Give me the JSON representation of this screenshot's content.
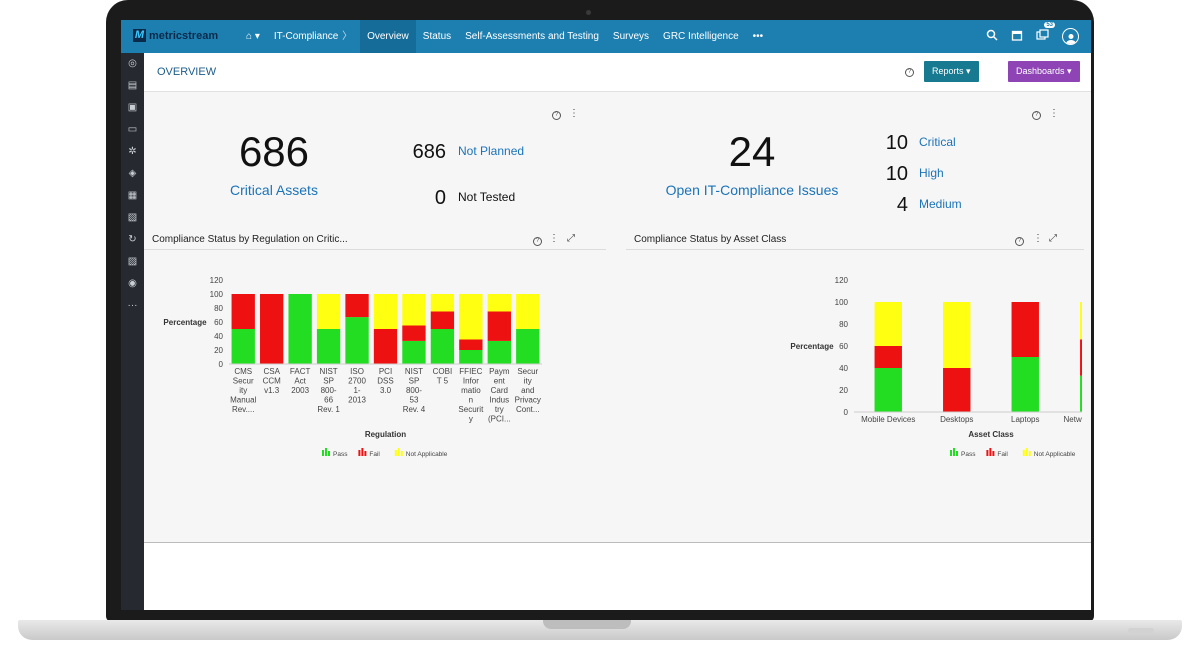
{
  "app": {
    "logo_text": "metricstream",
    "logo_mark": "M"
  },
  "nav": {
    "home": "⌂ ▾",
    "items": [
      {
        "label": "IT-Compliance",
        "sep": "〉"
      },
      {
        "label": "Overview",
        "active": true
      },
      {
        "label": "Status"
      },
      {
        "label": "Self-Assessments and Testing"
      },
      {
        "label": "Surveys"
      },
      {
        "label": "GRC Intelligence"
      },
      {
        "label": "•••"
      }
    ],
    "notification_count": "53"
  },
  "header": {
    "title": "OVERVIEW",
    "reports_label": "Reports",
    "dashboards_label": "Dashboards"
  },
  "kpi_left": {
    "value": "686",
    "label": "Critical Assets",
    "stats": [
      {
        "value": "686",
        "label": "Not Planned"
      },
      {
        "value": "0",
        "label": "Not Tested"
      }
    ]
  },
  "kpi_right": {
    "value": "24",
    "label": "Open IT-Compliance Issues",
    "stats": [
      {
        "value": "10",
        "label": "Critical"
      },
      {
        "value": "10",
        "label": "High"
      },
      {
        "value": "4",
        "label": "Medium"
      }
    ]
  },
  "colors": {
    "pass": "#22dd22",
    "fail": "#ee1111",
    "na": "#ffff11",
    "accent": "#1d7fb0"
  },
  "chart_data": [
    {
      "type": "bar",
      "stacked": true,
      "title": "Compliance Status by Regulation on Critic...",
      "xlabel": "Regulation",
      "ylabel": "Percentage",
      "ylim": [
        0,
        120
      ],
      "yticks": [
        0,
        20,
        40,
        60,
        80,
        100,
        120
      ],
      "categories": [
        [
          "CMS",
          "Secur",
          "ity",
          "Manual",
          "Rev...."
        ],
        [
          "CSA",
          "CCM",
          "v1.3"
        ],
        [
          "FACT",
          "Act",
          "2003"
        ],
        [
          "NIST",
          "SP",
          "800-",
          "66",
          "Rev. 1"
        ],
        [
          "ISO",
          "2700",
          "1-",
          "2013"
        ],
        [
          "PCI",
          "DSS",
          "3.0"
        ],
        [
          "NIST",
          "SP",
          "800-",
          "53",
          "Rev. 4"
        ],
        [
          "COBI",
          "T 5"
        ],
        [
          "FFIEC",
          "Infor",
          "matio",
          "n",
          "Securit",
          "y"
        ],
        [
          "Paym",
          "ent",
          "Card",
          "Indus",
          "try",
          "(PCI..."
        ],
        [
          "Secur",
          "ity",
          "and",
          "Privacy",
          "Cont..."
        ]
      ],
      "series": [
        {
          "name": "Pass",
          "values": [
            50,
            0,
            100,
            50,
            67,
            0,
            33,
            50,
            20,
            33,
            50
          ]
        },
        {
          "name": "Fail",
          "values": [
            50,
            100,
            0,
            0,
            33,
            50,
            22,
            25,
            15,
            42,
            0
          ]
        },
        {
          "name": "Not Applicable",
          "values": [
            0,
            0,
            0,
            50,
            0,
            50,
            45,
            25,
            65,
            25,
            50
          ]
        }
      ],
      "legend": "bottom"
    },
    {
      "type": "bar",
      "stacked": true,
      "title": "Compliance Status by Asset Class",
      "xlabel": "Asset Class",
      "ylabel": "Percentage",
      "ylim": [
        0,
        120
      ],
      "yticks": [
        0,
        20,
        40,
        60,
        80,
        100,
        120
      ],
      "categories": [
        [
          "Mobile Devices"
        ],
        [
          "Desktops"
        ],
        [
          "Laptops"
        ],
        [
          "Network - Router"
        ]
      ],
      "series": [
        {
          "name": "Pass",
          "values": [
            40,
            0,
            50,
            33
          ]
        },
        {
          "name": "Fail",
          "values": [
            20,
            40,
            50,
            33
          ]
        },
        {
          "name": "Not Applicable",
          "values": [
            40,
            60,
            0,
            34
          ]
        }
      ],
      "legend": "bottom"
    }
  ]
}
